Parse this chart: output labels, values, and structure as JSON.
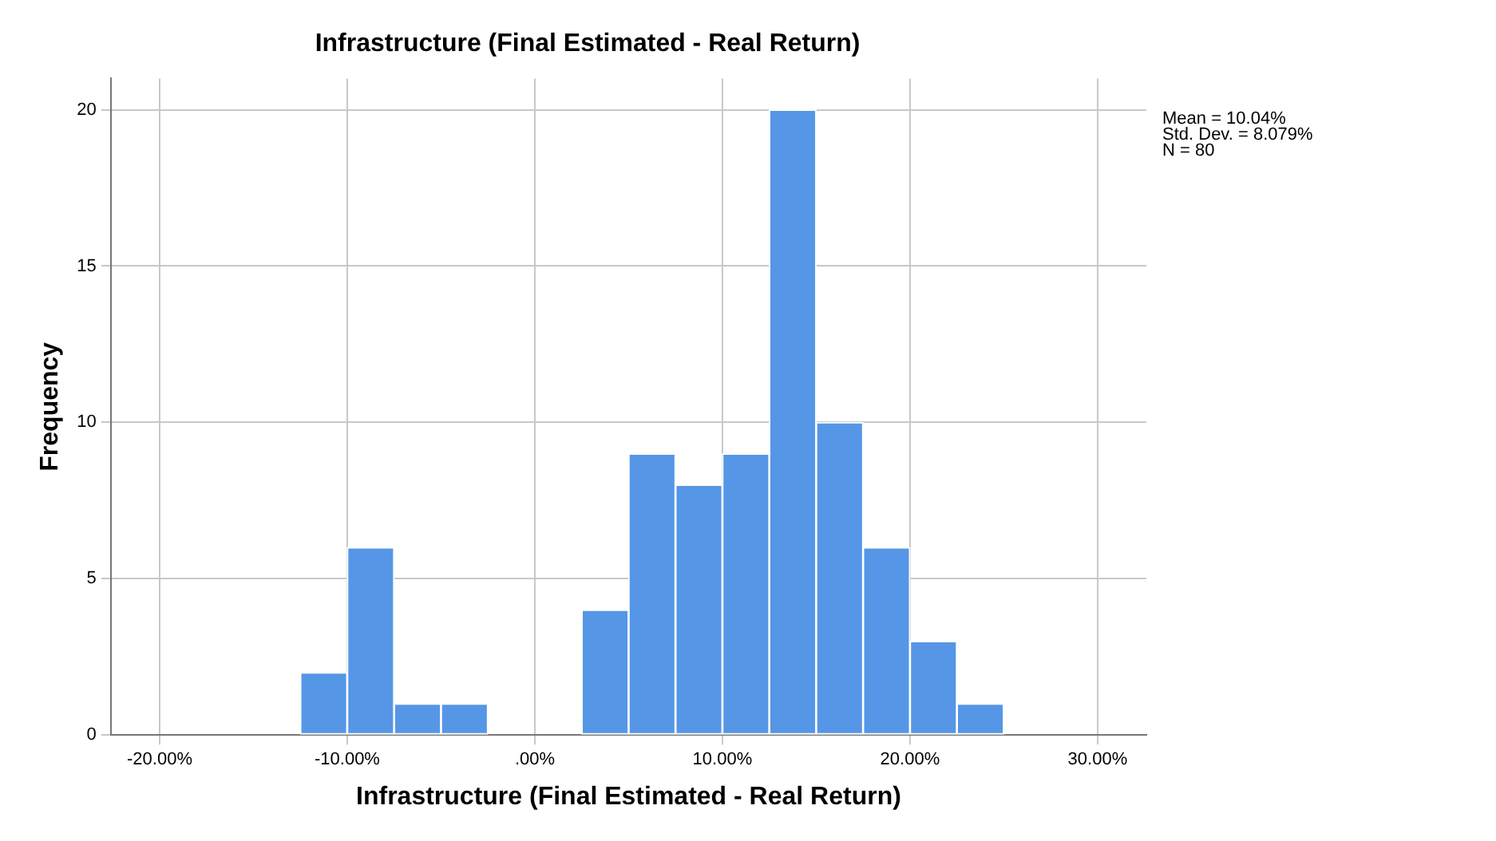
{
  "chart_data": {
    "type": "histogram",
    "title": "Infrastructure (Final Estimated - Real Return)",
    "xlabel": "Infrastructure (Final Estimated - Real Return)",
    "ylabel": "Frequency",
    "bins": [
      -12.5,
      -10,
      -7.5,
      -5,
      -2.5,
      0,
      2.5,
      5,
      7.5,
      10,
      12.5,
      15,
      17.5,
      20,
      22.5,
      25
    ],
    "values": [
      2,
      6,
      1,
      1,
      0,
      0,
      4,
      9,
      8,
      9,
      20,
      10,
      6,
      3,
      1
    ],
    "color": "#5596e6",
    "xlim": [
      -22.6,
      32.6
    ],
    "xticks": [
      {
        "value": -20,
        "label": "-20.00%"
      },
      {
        "value": -10,
        "label": "-10.00%"
      },
      {
        "value": 0,
        "label": ".00%"
      },
      {
        "value": 10,
        "label": "10.00%"
      },
      {
        "value": 20,
        "label": "20.00%"
      },
      {
        "value": 30,
        "label": "30.00%"
      }
    ],
    "ylim": [
      0,
      21
    ],
    "yticks": [
      0,
      5,
      10,
      15,
      20
    ],
    "grid": true,
    "legend": false,
    "annotations": [
      "Mean = 10.04%",
      "Std. Dev. = 8.079%",
      "N = 80"
    ]
  }
}
